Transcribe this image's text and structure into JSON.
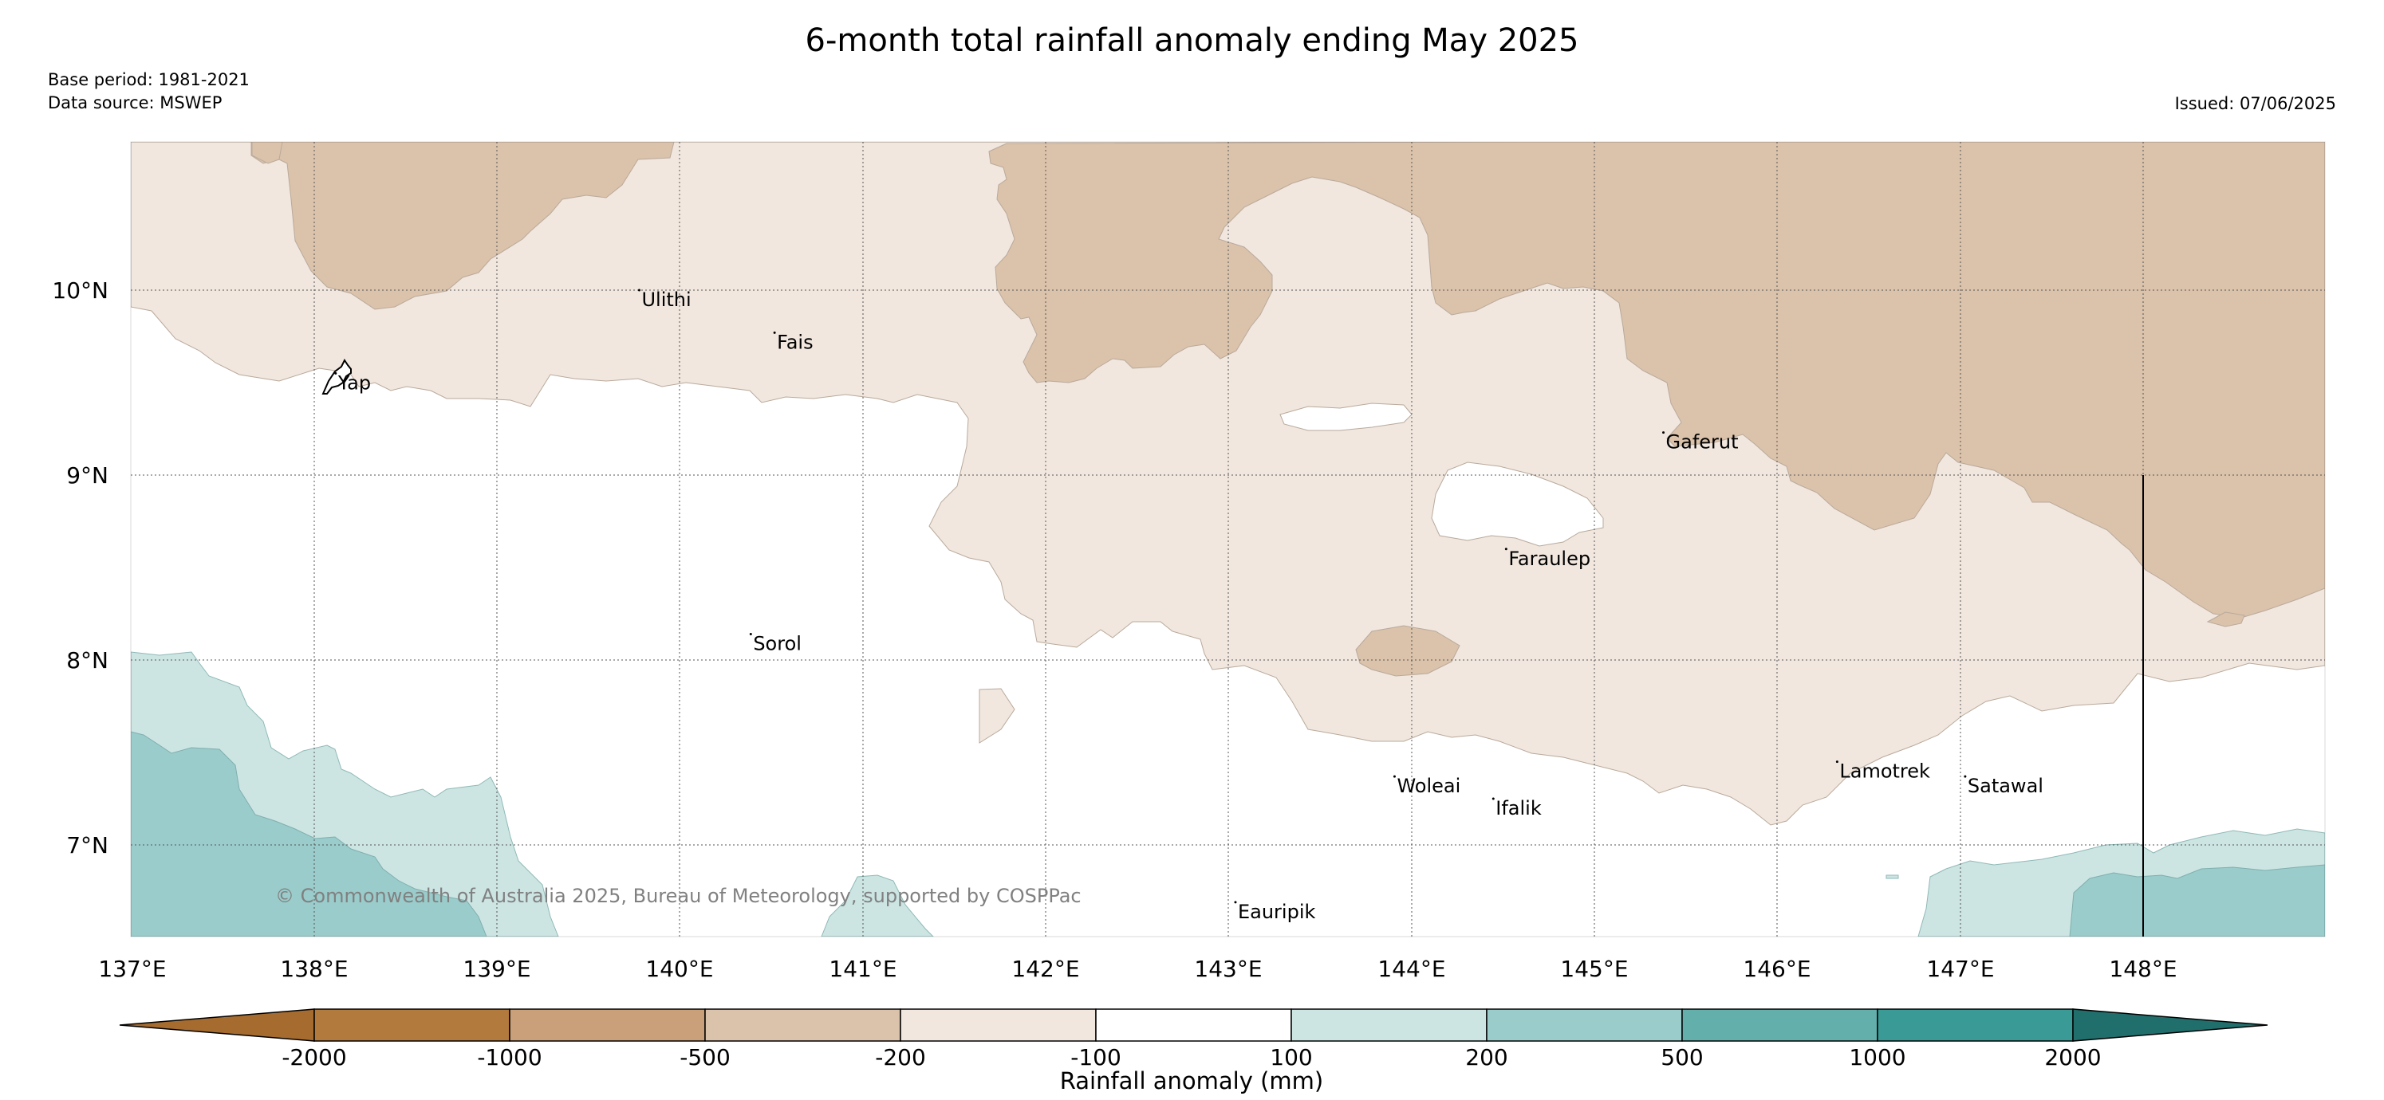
{
  "title": "6-month total rainfall anomaly ending May 2025",
  "meta": {
    "base_period": "Base period: 1981-2021",
    "data_source": "Data source: MSWEP",
    "issued": "Issued: 07/06/2025"
  },
  "copyright": "© Commonwealth of Australia 2025, Bureau of Meteorology, supported by COSPPac",
  "map": {
    "lat_labels": [
      "10°N",
      "9°N",
      "8°N",
      "7°N"
    ],
    "lon_labels": [
      "137°E",
      "138°E",
      "139°E",
      "140°E",
      "141°E",
      "142°E",
      "143°E",
      "144°E",
      "145°E",
      "146°E",
      "147°E",
      "148°E"
    ],
    "places": [
      {
        "name": "Ulithi",
        "lon": 139.78,
        "lat": 10.0
      },
      {
        "name": "Fais",
        "lon": 140.52,
        "lat": 9.77
      },
      {
        "name": "Yap",
        "lon": 138.12,
        "lat": 9.55
      },
      {
        "name": "Gaferut",
        "lon": 145.38,
        "lat": 9.23
      },
      {
        "name": "Faraulep",
        "lon": 144.52,
        "lat": 8.6
      },
      {
        "name": "Sorol",
        "lon": 140.39,
        "lat": 8.14
      },
      {
        "name": "Woleai",
        "lon": 143.91,
        "lat": 7.37
      },
      {
        "name": "Ifalik",
        "lon": 144.45,
        "lat": 7.25
      },
      {
        "name": "Lamotrek",
        "lon": 146.33,
        "lat": 7.45
      },
      {
        "name": "Satawal",
        "lon": 147.03,
        "lat": 7.37
      },
      {
        "name": "Eauripik",
        "lon": 143.04,
        "lat": 6.69
      }
    ]
  },
  "colorbar": {
    "title": "Rainfall anomaly (mm)",
    "tick_labels": [
      "-2000",
      "-1000",
      "-500",
      "-200",
      "-100",
      "100",
      "200",
      "500",
      "1000",
      "2000"
    ],
    "colors": [
      "#A56B2F",
      "#B27A3D",
      "#C9A07A",
      "#DBC2AA",
      "#F1E7DF",
      "#FFFFFF",
      "#CCE5E3",
      "#9ACCCB",
      "#62AFAC",
      "#3A9B96",
      "#2C807D",
      "#216F6C"
    ]
  }
}
